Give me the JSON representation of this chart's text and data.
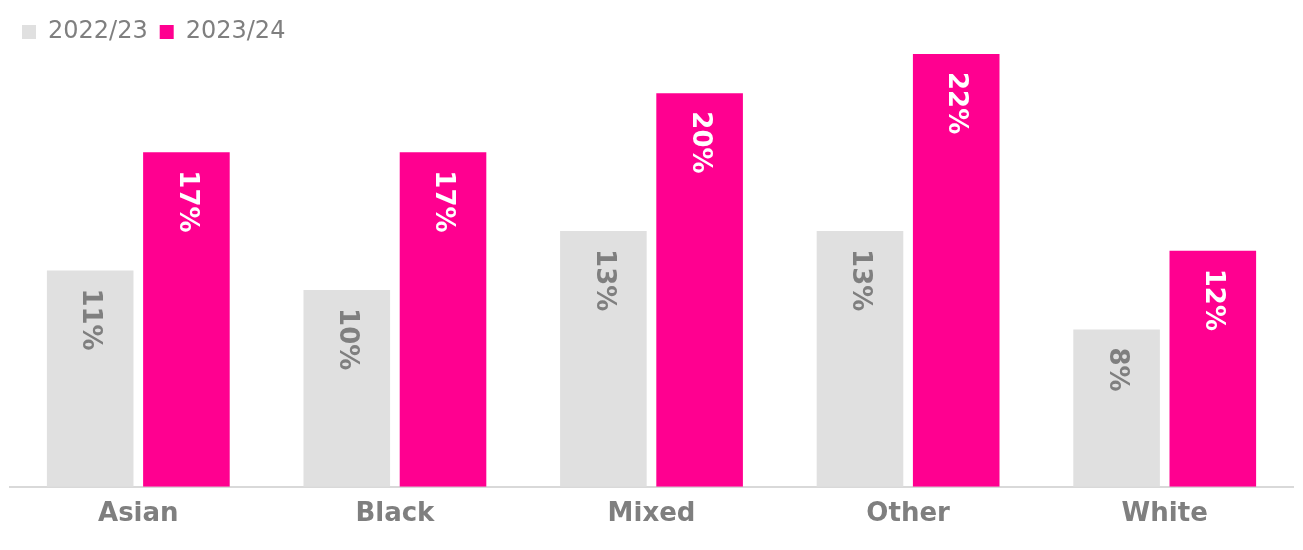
{
  "chart_data": {
    "type": "bar",
    "categories": [
      "Asian",
      "Black",
      "Mixed",
      "Other",
      "White"
    ],
    "series": [
      {
        "name": "2022/23",
        "color": "#e0e0e0",
        "values": [
          11,
          10,
          13,
          13,
          8
        ],
        "value_labels": [
          "11%",
          "10%",
          "13%",
          "13%",
          "8%"
        ]
      },
      {
        "name": "2023/24",
        "color": "#ff0090",
        "values": [
          17,
          17,
          20,
          22,
          12
        ],
        "value_labels": [
          "17%",
          "17%",
          "20%",
          "22%",
          "12%"
        ]
      }
    ],
    "tick_labels": "x",
    "legend": "top left"
  }
}
